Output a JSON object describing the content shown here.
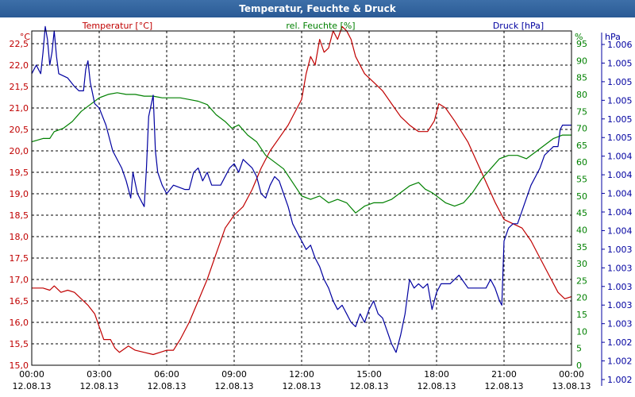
{
  "window": {
    "title": "Temperatur, Feuchte & Druck"
  },
  "colors": {
    "temperature": "#c00000",
    "humidity": "#008000",
    "pressure": "#0000a0",
    "grid": "#000000",
    "title_bg": "#2a5a95"
  },
  "chart_data": {
    "type": "line",
    "title": "Temperatur, Feuchte & Druck",
    "grid": true,
    "x_ticks": [
      {
        "time": "00:00",
        "date": "12.08.13"
      },
      {
        "time": "03:00",
        "date": "12.08.13"
      },
      {
        "time": "06:00",
        "date": "12.08.13"
      },
      {
        "time": "09:00",
        "date": "12.08.13"
      },
      {
        "time": "12:00",
        "date": "12.08.13"
      },
      {
        "time": "15:00",
        "date": "12.08.13"
      },
      {
        "time": "18:00",
        "date": "12.08.13"
      },
      {
        "time": "21:00",
        "date": "12.08.13"
      },
      {
        "time": "00:00",
        "date": "13.08.13"
      }
    ],
    "xlim_hours": [
      0,
      24
    ],
    "axes": {
      "temperature": {
        "label": "Temperatur [°C]",
        "unit": "°C",
        "ylim": [
          15.0,
          22.5
        ],
        "ticks": [
          "15,0",
          "15,5",
          "16,0",
          "16,5",
          "17,0",
          "17,5",
          "18,0",
          "18,5",
          "19,0",
          "19,5",
          "20,0",
          "20,5",
          "21,0",
          "21,5",
          "22,0",
          "22,5"
        ]
      },
      "humidity": {
        "label": "rel. Feuchte [%]",
        "unit": "%",
        "ylim": [
          0,
          95
        ],
        "ticks": [
          "0",
          "5",
          "10",
          "15",
          "20",
          "25",
          "30",
          "35",
          "40",
          "45",
          "50",
          "55",
          "60",
          "65",
          "70",
          "75",
          "80",
          "85",
          "90",
          "95"
        ]
      },
      "pressure": {
        "label": "Druck [hPa]",
        "unit": "hPa",
        "ticks": [
          "1.006",
          "1.005",
          "1.005",
          "1.005",
          "1.005",
          "1.005",
          "1.004",
          "1.004",
          "1.004",
          "1.004",
          "1.004",
          "1.003",
          "1.003",
          "1.003",
          "1.003",
          "1.003",
          "1.002",
          "1.002",
          "1.002"
        ]
      }
    },
    "series": [
      {
        "name": "Temperatur [°C]",
        "axis": "temperature",
        "color": "#c00000",
        "points": [
          [
            0,
            16.8
          ],
          [
            0.5,
            16.8
          ],
          [
            0.8,
            16.75
          ],
          [
            1.0,
            16.85
          ],
          [
            1.3,
            16.7
          ],
          [
            1.6,
            16.75
          ],
          [
            1.9,
            16.7
          ],
          [
            2.2,
            16.55
          ],
          [
            2.5,
            16.4
          ],
          [
            2.8,
            16.2
          ],
          [
            3.0,
            15.9
          ],
          [
            3.2,
            15.6
          ],
          [
            3.5,
            15.6
          ],
          [
            3.7,
            15.4
          ],
          [
            3.9,
            15.3
          ],
          [
            4.3,
            15.45
          ],
          [
            4.6,
            15.35
          ],
          [
            5.0,
            15.3
          ],
          [
            5.4,
            15.25
          ],
          [
            5.7,
            15.3
          ],
          [
            6.0,
            15.35
          ],
          [
            6.3,
            15.35
          ],
          [
            6.6,
            15.6
          ],
          [
            7.0,
            16.0
          ],
          [
            7.4,
            16.5
          ],
          [
            7.8,
            17.0
          ],
          [
            8.2,
            17.6
          ],
          [
            8.6,
            18.2
          ],
          [
            9.0,
            18.5
          ],
          [
            9.4,
            18.7
          ],
          [
            9.8,
            19.1
          ],
          [
            10.2,
            19.6
          ],
          [
            10.6,
            20.0
          ],
          [
            11.0,
            20.3
          ],
          [
            11.4,
            20.6
          ],
          [
            11.8,
            21.0
          ],
          [
            12.0,
            21.2
          ],
          [
            12.2,
            21.8
          ],
          [
            12.4,
            22.2
          ],
          [
            12.6,
            22.0
          ],
          [
            12.8,
            22.6
          ],
          [
            13.0,
            22.3
          ],
          [
            13.2,
            22.4
          ],
          [
            13.4,
            22.8
          ],
          [
            13.6,
            22.6
          ],
          [
            13.8,
            22.9
          ],
          [
            14.0,
            22.8
          ],
          [
            14.2,
            22.6
          ],
          [
            14.4,
            22.2
          ],
          [
            14.8,
            21.8
          ],
          [
            15.2,
            21.6
          ],
          [
            15.6,
            21.4
          ],
          [
            16.0,
            21.1
          ],
          [
            16.4,
            20.8
          ],
          [
            16.8,
            20.6
          ],
          [
            17.2,
            20.45
          ],
          [
            17.6,
            20.45
          ],
          [
            17.9,
            20.7
          ],
          [
            18.1,
            21.1
          ],
          [
            18.4,
            21.0
          ],
          [
            18.8,
            20.7
          ],
          [
            19.4,
            20.2
          ],
          [
            20.0,
            19.5
          ],
          [
            20.6,
            18.8
          ],
          [
            21.0,
            18.4
          ],
          [
            21.4,
            18.3
          ],
          [
            21.8,
            18.2
          ],
          [
            22.2,
            17.9
          ],
          [
            22.6,
            17.5
          ],
          [
            23.0,
            17.1
          ],
          [
            23.4,
            16.7
          ],
          [
            23.7,
            16.55
          ],
          [
            24.0,
            16.6
          ]
        ]
      },
      {
        "name": "rel. Feuchte [%]",
        "axis": "humidity",
        "color": "#008000",
        "points": [
          [
            0,
            66
          ],
          [
            0.5,
            67
          ],
          [
            0.8,
            67
          ],
          [
            1.0,
            69
          ],
          [
            1.4,
            70
          ],
          [
            1.8,
            72
          ],
          [
            2.2,
            75
          ],
          [
            2.6,
            77
          ],
          [
            3.0,
            79
          ],
          [
            3.4,
            80
          ],
          [
            3.8,
            80.5
          ],
          [
            4.2,
            80
          ],
          [
            4.6,
            80
          ],
          [
            5.0,
            79.5
          ],
          [
            5.4,
            79.5
          ],
          [
            5.8,
            79
          ],
          [
            6.2,
            79
          ],
          [
            6.6,
            79
          ],
          [
            7.0,
            78.5
          ],
          [
            7.4,
            78
          ],
          [
            7.8,
            77
          ],
          [
            8.2,
            74
          ],
          [
            8.6,
            72
          ],
          [
            8.9,
            70
          ],
          [
            9.2,
            71
          ],
          [
            9.6,
            68
          ],
          [
            10.0,
            66
          ],
          [
            10.4,
            62
          ],
          [
            10.8,
            60
          ],
          [
            11.2,
            58
          ],
          [
            11.6,
            54
          ],
          [
            12.0,
            50
          ],
          [
            12.4,
            49
          ],
          [
            12.8,
            50
          ],
          [
            13.2,
            48
          ],
          [
            13.6,
            49
          ],
          [
            14.0,
            48
          ],
          [
            14.4,
            45
          ],
          [
            14.8,
            47
          ],
          [
            15.2,
            48
          ],
          [
            15.6,
            48
          ],
          [
            16.0,
            49
          ],
          [
            16.4,
            51
          ],
          [
            16.8,
            53
          ],
          [
            17.2,
            54
          ],
          [
            17.5,
            52
          ],
          [
            17.8,
            51
          ],
          [
            18.0,
            50
          ],
          [
            18.4,
            48
          ],
          [
            18.8,
            47
          ],
          [
            19.2,
            48
          ],
          [
            19.6,
            51
          ],
          [
            20.0,
            55
          ],
          [
            20.4,
            58
          ],
          [
            20.8,
            61
          ],
          [
            21.2,
            62
          ],
          [
            21.6,
            62
          ],
          [
            22.0,
            61
          ],
          [
            22.4,
            63
          ],
          [
            22.8,
            65
          ],
          [
            23.2,
            67
          ],
          [
            23.6,
            68
          ],
          [
            24.0,
            68
          ]
        ]
      },
      {
        "name": "Druck [hPa]",
        "axis": "pressure",
        "color": "#0000a0",
        "points": [
          [
            0,
            21.8
          ],
          [
            0.2,
            22.0
          ],
          [
            0.4,
            21.8
          ],
          [
            0.5,
            22.3
          ],
          [
            0.6,
            22.9
          ],
          [
            0.7,
            22.6
          ],
          [
            0.8,
            22.0
          ],
          [
            0.9,
            22.3
          ],
          [
            1.0,
            22.8
          ],
          [
            1.1,
            22.2
          ],
          [
            1.2,
            21.8
          ],
          [
            1.6,
            21.7
          ],
          [
            1.9,
            21.5
          ],
          [
            2.1,
            21.4
          ],
          [
            2.3,
            21.4
          ],
          [
            2.4,
            21.9
          ],
          [
            2.5,
            22.1
          ],
          [
            2.6,
            21.6
          ],
          [
            2.8,
            21.1
          ],
          [
            3.0,
            21.0
          ],
          [
            3.3,
            20.6
          ],
          [
            3.6,
            20.0
          ],
          [
            4.0,
            19.6
          ],
          [
            4.2,
            19.3
          ],
          [
            4.4,
            18.9
          ],
          [
            4.5,
            19.5
          ],
          [
            4.7,
            19.0
          ],
          [
            4.9,
            18.8
          ],
          [
            5.0,
            18.7
          ],
          [
            5.1,
            19.6
          ],
          [
            5.2,
            20.8
          ],
          [
            5.4,
            21.3
          ],
          [
            5.5,
            20.0
          ],
          [
            5.6,
            19.5
          ],
          [
            5.8,
            19.2
          ],
          [
            6.0,
            19.0
          ],
          [
            6.3,
            19.2
          ],
          [
            6.8,
            19.1
          ],
          [
            7.0,
            19.1
          ],
          [
            7.2,
            19.5
          ],
          [
            7.4,
            19.6
          ],
          [
            7.6,
            19.3
          ],
          [
            7.8,
            19.5
          ],
          [
            8.0,
            19.2
          ],
          [
            8.4,
            19.2
          ],
          [
            8.8,
            19.6
          ],
          [
            9.0,
            19.7
          ],
          [
            9.2,
            19.5
          ],
          [
            9.4,
            19.8
          ],
          [
            9.6,
            19.7
          ],
          [
            9.8,
            19.6
          ],
          [
            10.0,
            19.4
          ],
          [
            10.2,
            19.0
          ],
          [
            10.4,
            18.9
          ],
          [
            10.6,
            19.2
          ],
          [
            10.8,
            19.4
          ],
          [
            11.0,
            19.3
          ],
          [
            11.2,
            19.0
          ],
          [
            11.4,
            18.7
          ],
          [
            11.6,
            18.3
          ],
          [
            11.8,
            18.1
          ],
          [
            12.0,
            17.9
          ],
          [
            12.2,
            17.7
          ],
          [
            12.4,
            17.8
          ],
          [
            12.6,
            17.5
          ],
          [
            12.8,
            17.3
          ],
          [
            13.0,
            17.0
          ],
          [
            13.2,
            16.8
          ],
          [
            13.4,
            16.5
          ],
          [
            13.6,
            16.3
          ],
          [
            13.8,
            16.4
          ],
          [
            14.0,
            16.2
          ],
          [
            14.2,
            16.0
          ],
          [
            14.4,
            15.9
          ],
          [
            14.6,
            16.2
          ],
          [
            14.8,
            16.0
          ],
          [
            15.0,
            16.3
          ],
          [
            15.2,
            16.5
          ],
          [
            15.4,
            16.2
          ],
          [
            15.6,
            16.1
          ],
          [
            15.8,
            15.8
          ],
          [
            16.0,
            15.5
          ],
          [
            16.2,
            15.3
          ],
          [
            16.4,
            15.7
          ],
          [
            16.6,
            16.2
          ],
          [
            16.8,
            17.0
          ],
          [
            17.0,
            16.8
          ],
          [
            17.2,
            16.9
          ],
          [
            17.4,
            16.8
          ],
          [
            17.6,
            16.9
          ],
          [
            17.8,
            16.3
          ],
          [
            18.0,
            16.7
          ],
          [
            18.2,
            16.9
          ],
          [
            18.6,
            16.9
          ],
          [
            19.0,
            17.1
          ],
          [
            19.4,
            16.8
          ],
          [
            19.8,
            16.8
          ],
          [
            20.2,
            16.8
          ],
          [
            20.4,
            17.0
          ],
          [
            20.6,
            16.8
          ],
          [
            20.8,
            16.5
          ],
          [
            20.9,
            16.4
          ],
          [
            21.0,
            17.9
          ],
          [
            21.2,
            18.2
          ],
          [
            21.4,
            18.3
          ],
          [
            21.6,
            18.3
          ],
          [
            21.8,
            18.6
          ],
          [
            22.0,
            18.9
          ],
          [
            22.2,
            19.2
          ],
          [
            22.4,
            19.4
          ],
          [
            22.6,
            19.6
          ],
          [
            22.8,
            19.9
          ],
          [
            23.0,
            20.0
          ],
          [
            23.2,
            20.1
          ],
          [
            23.4,
            20.1
          ],
          [
            23.5,
            20.5
          ],
          [
            23.6,
            20.6
          ],
          [
            23.8,
            20.6
          ],
          [
            24.0,
            20.6
          ]
        ]
      }
    ]
  }
}
